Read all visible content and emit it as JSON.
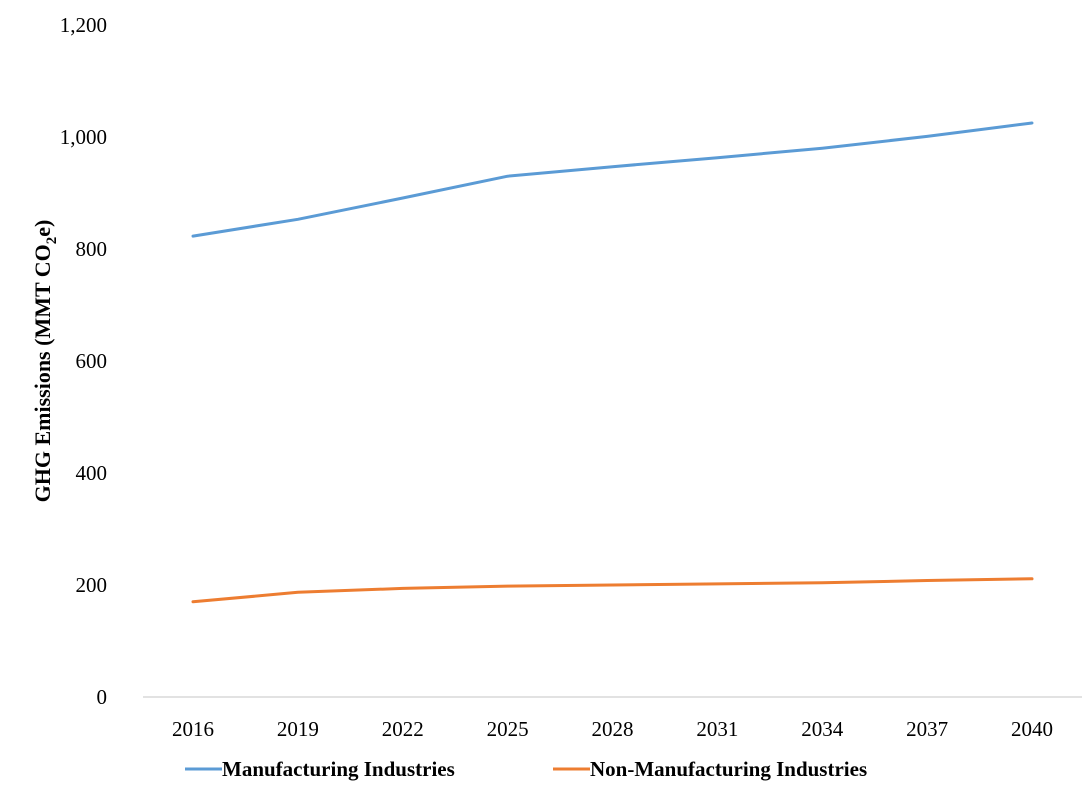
{
  "chart_data": {
    "type": "line",
    "x": [
      2016,
      2019,
      2022,
      2025,
      2028,
      2031,
      2034,
      2037,
      2040
    ],
    "series": [
      {
        "name": "Manufacturing Industries",
        "color": "#5B9BD5",
        "values": [
          823,
          853,
          891,
          930,
          947,
          963,
          980,
          1001,
          1025
        ]
      },
      {
        "name": "Non-Manufacturing Industries",
        "color": "#ED7D31",
        "values": [
          170,
          187,
          194,
          198,
          200,
          202,
          204,
          208,
          211
        ]
      }
    ],
    "title": "",
    "xlabel": "",
    "ylabel": {
      "prefix": "GHG Emissions (MMT CO",
      "subscript": "2",
      "suffix": "e)"
    },
    "ylim": [
      0,
      1200
    ],
    "yticks": [
      0,
      200,
      400,
      600,
      800,
      1000,
      1200
    ],
    "ytick_labels": [
      "0",
      "200",
      "400",
      "600",
      "800",
      "1,000",
      "1,200"
    ],
    "xtick_labels": [
      "2016",
      "2019",
      "2022",
      "2025",
      "2028",
      "2031",
      "2034",
      "2037",
      "2040"
    ],
    "grid": false,
    "legend_position": "bottom"
  }
}
